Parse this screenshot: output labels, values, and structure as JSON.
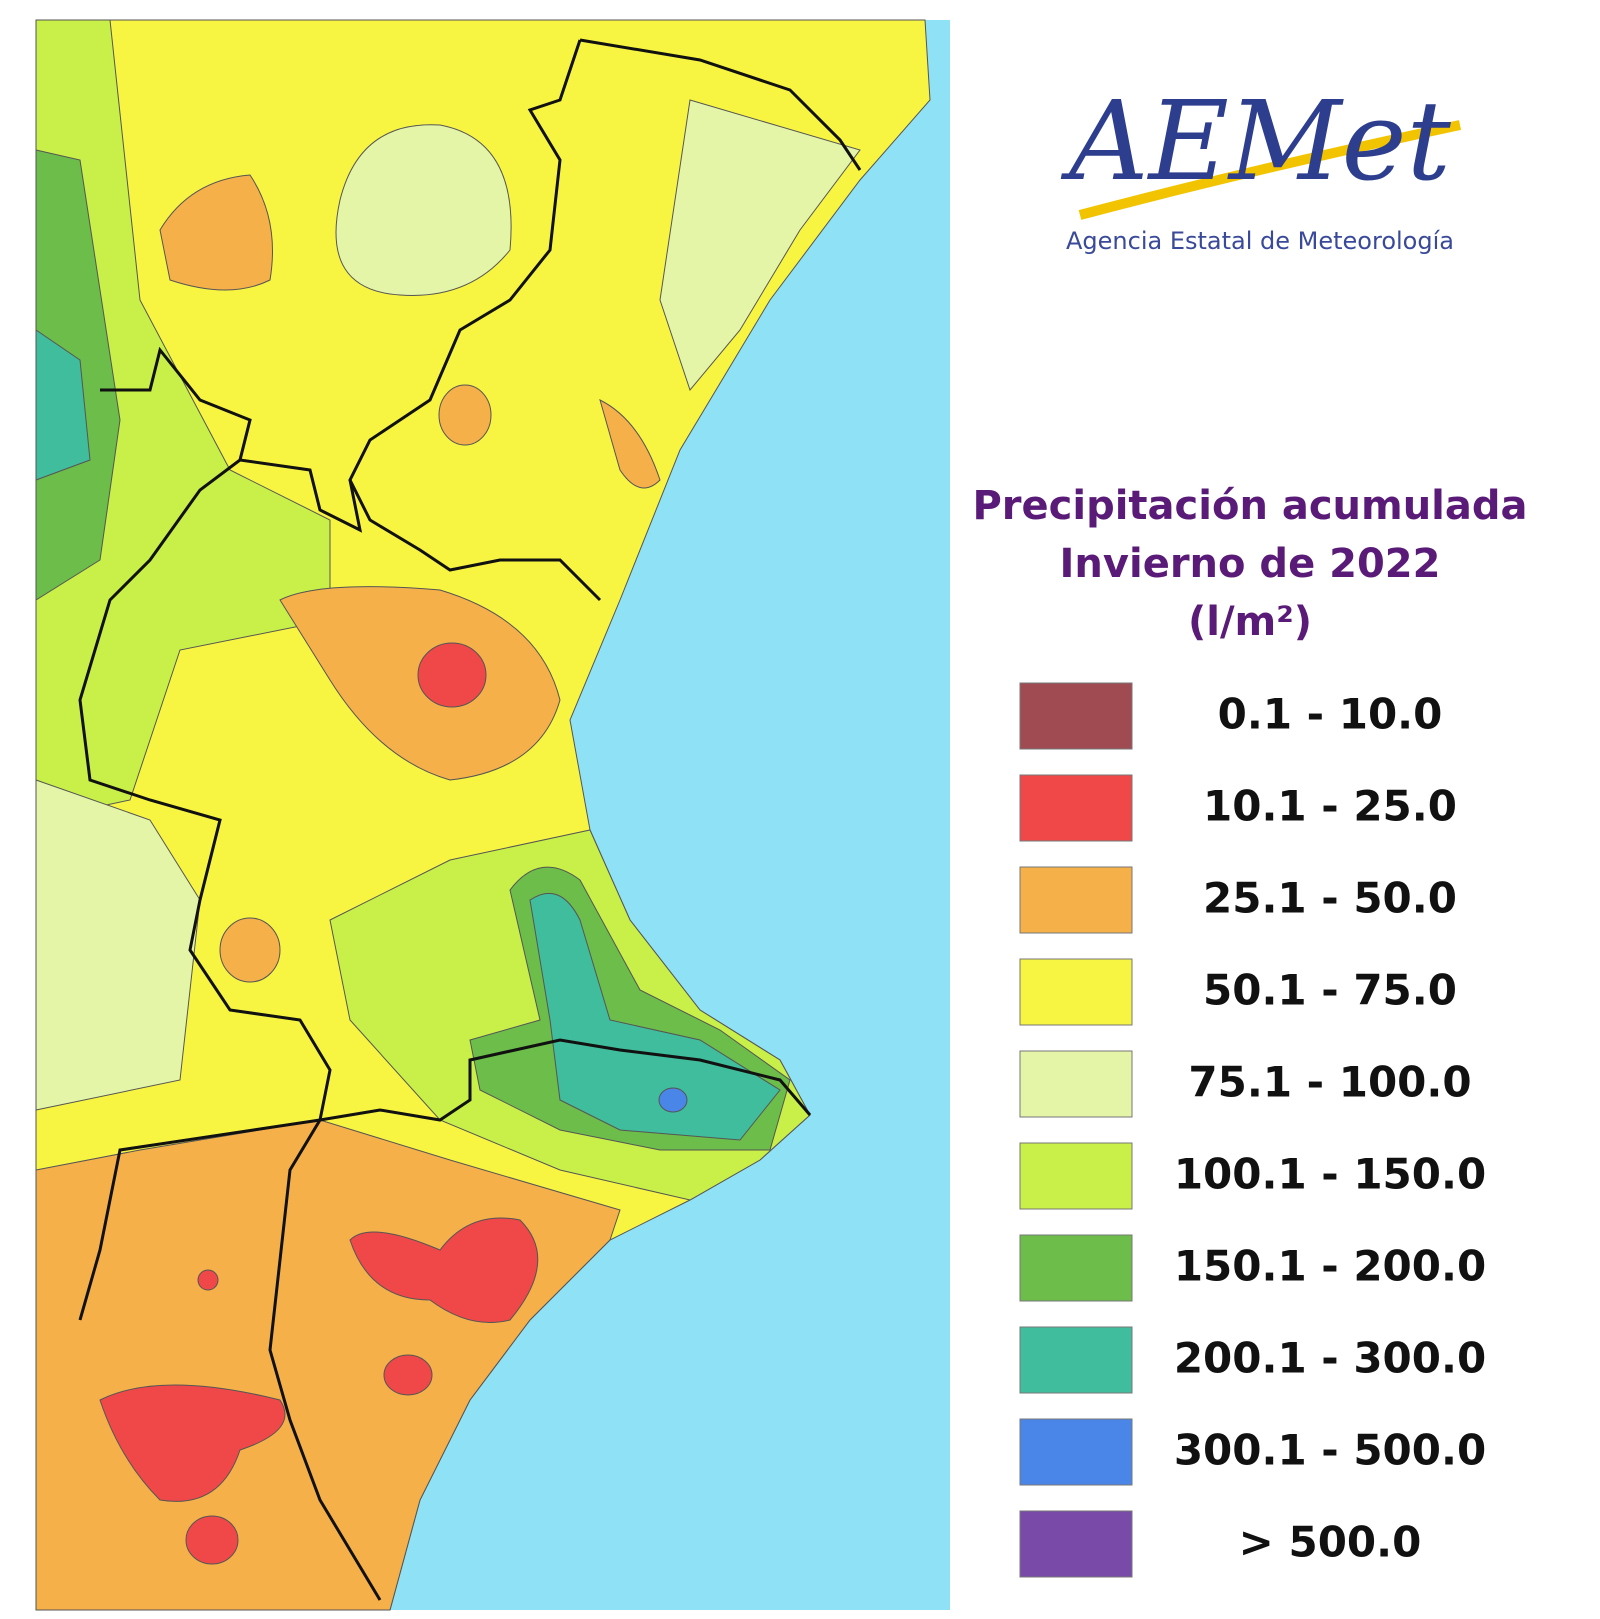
{
  "logo": {
    "name": "AEMet",
    "subtitle": "Agencia Estatal de Meteorología"
  },
  "legend": {
    "title": [
      "Precipitación acumulada",
      "Invierno de 2022",
      "(l/m²)"
    ],
    "items": [
      {
        "label": "0.1 - 10.0",
        "color": "#a04a52"
      },
      {
        "label": "10.1 - 25.0",
        "color": "#f04848"
      },
      {
        "label": "25.1 - 50.0",
        "color": "#f5b04a"
      },
      {
        "label": "50.1 - 75.0",
        "color": "#f8f542"
      },
      {
        "label": "75.1 - 100.0",
        "color": "#e4f5a8"
      },
      {
        "label": "100.1 - 150.0",
        "color": "#c8f048"
      },
      {
        "label": "150.1 - 200.0",
        "color": "#6cbd4a"
      },
      {
        "label": "200.1 - 300.0",
        "color": "#40bd9c"
      },
      {
        "label": "300.1 - 500.0",
        "color": "#4a86e8"
      },
      {
        "label": "> 500.0",
        "color": "#7a4aa8"
      }
    ]
  }
}
